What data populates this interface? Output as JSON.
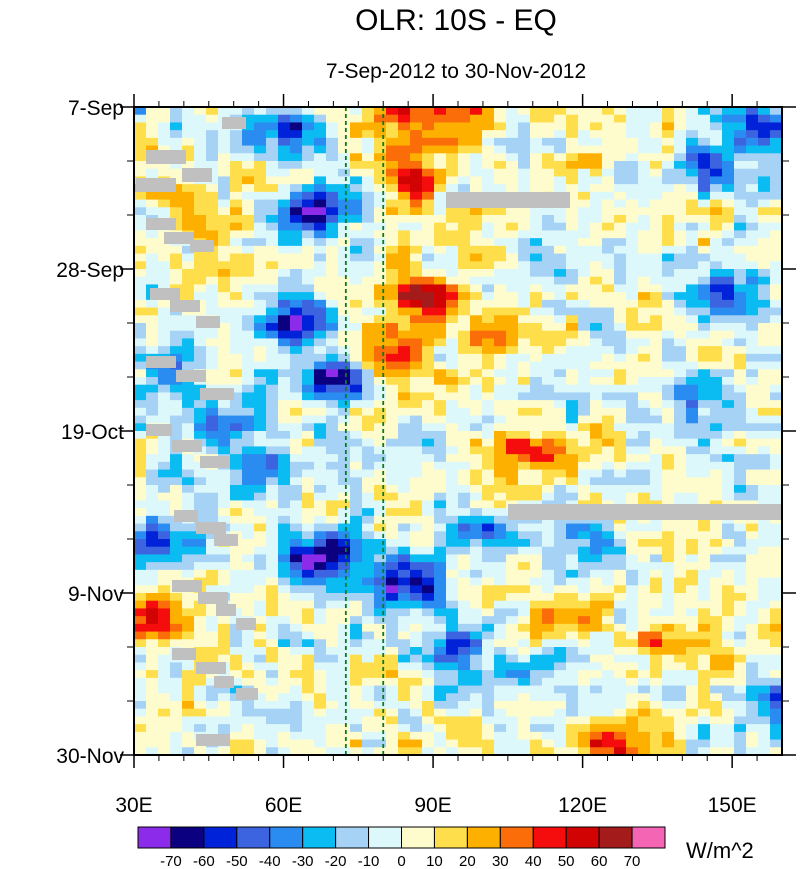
{
  "chart_data": {
    "type": "heatmap",
    "title": "OLR: 10S - EQ",
    "subtitle": "7-Sep-2012 to 30-Nov-2012",
    "xlabel": "",
    "ylabel": "",
    "x_range": [
      30,
      160
    ],
    "x_ticks": [
      {
        "value": 30,
        "label": "30E"
      },
      {
        "value": 60,
        "label": "60E"
      },
      {
        "value": 90,
        "label": "90E"
      },
      {
        "value": 120,
        "label": "120E"
      },
      {
        "value": 150,
        "label": "150E"
      }
    ],
    "y_range_days": [
      0,
      84
    ],
    "y_ticks": [
      {
        "value": 0,
        "label": "7-Sep"
      },
      {
        "value": 21,
        "label": "28-Sep"
      },
      {
        "value": 42,
        "label": "19-Oct"
      },
      {
        "value": 63,
        "label": "9-Nov"
      },
      {
        "value": 84,
        "label": "30-Nov"
      }
    ],
    "reference_lines_lon": [
      72.5,
      80
    ],
    "colorbar": {
      "units": "W/m^2",
      "levels": [
        -70,
        -60,
        -50,
        -40,
        -30,
        -20,
        -10,
        0,
        10,
        20,
        30,
        40,
        50,
        60,
        70
      ],
      "colors": [
        "#8c2bea",
        "#0b007f",
        "#0022d8",
        "#3d64e0",
        "#2a8cf0",
        "#0bbcf3",
        "#a6d3f5",
        "#ddf8fb",
        "#fefccd",
        "#fede4a",
        "#fdb000",
        "#fb6d08",
        "#f50c0c",
        "#d10303",
        "#a31b1b",
        "#f466b4"
      ]
    },
    "features": [
      {
        "lon": 83,
        "day": 1,
        "value": 45
      },
      {
        "lon": 95,
        "day": 2,
        "value": 30
      },
      {
        "lon": 86,
        "day": 9,
        "value": 40
      },
      {
        "lon": 88,
        "day": 24,
        "value": 55
      },
      {
        "lon": 82,
        "day": 32,
        "value": 45
      },
      {
        "lon": 108,
        "day": 45,
        "value": 50
      },
      {
        "lon": 100,
        "day": 30,
        "value": 25
      },
      {
        "lon": 128,
        "day": 82,
        "value": 45
      },
      {
        "lon": 118,
        "day": 66,
        "value": 35
      },
      {
        "lon": 140,
        "day": 70,
        "value": 30
      },
      {
        "lon": 33,
        "day": 67,
        "value": 45
      },
      {
        "lon": 40,
        "day": 14,
        "value": 20
      },
      {
        "lon": 60,
        "day": 3,
        "value": -50
      },
      {
        "lon": 66,
        "day": 14,
        "value": -55
      },
      {
        "lon": 63,
        "day": 28,
        "value": -60
      },
      {
        "lon": 71,
        "day": 35,
        "value": -65
      },
      {
        "lon": 55,
        "day": 47,
        "value": -55
      },
      {
        "lon": 68,
        "day": 58,
        "value": -70
      },
      {
        "lon": 84,
        "day": 62,
        "value": -70
      },
      {
        "lon": 36,
        "day": 56,
        "value": -50
      },
      {
        "lon": 146,
        "day": 8,
        "value": -45
      },
      {
        "lon": 156,
        "day": 2,
        "value": -50
      },
      {
        "lon": 150,
        "day": 24,
        "value": -40
      },
      {
        "lon": 145,
        "day": 38,
        "value": -35
      },
      {
        "lon": 102,
        "day": 56,
        "value": -45
      },
      {
        "lon": 122,
        "day": 57,
        "value": -35
      },
      {
        "lon": 95,
        "day": 70,
        "value": -40
      },
      {
        "lon": 112,
        "day": 73,
        "value": -30
      },
      {
        "lon": 158,
        "day": 77,
        "value": -40
      },
      {
        "lon": 36,
        "day": 34,
        "value": -30
      },
      {
        "lon": 48,
        "day": 40,
        "value": -35
      }
    ]
  }
}
